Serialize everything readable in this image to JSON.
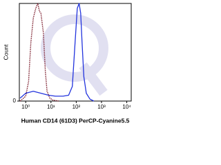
{
  "chart_data": {
    "type": "line",
    "log_x": true,
    "x_label": "Human CD14 (61D3) PerCP-Cyanine5.5",
    "y_label": "Count",
    "xlim": [
      0.56,
      15000
    ],
    "xticks": [
      {
        "value": 1,
        "label": "10⁰"
      },
      {
        "value": 10,
        "label": "10¹"
      },
      {
        "value": 100,
        "label": "10²"
      },
      {
        "value": 1000,
        "label": "10³"
      },
      {
        "value": 10000,
        "label": "10⁴"
      }
    ],
    "ylim": [
      0,
      100
    ],
    "yticks": [
      0
    ],
    "series": [
      {
        "color": "#7a1a2a",
        "dash": true,
        "x": [
          0.6,
          1,
          1.3,
          1.6,
          2,
          2.5,
          3,
          3.5,
          4,
          5,
          6,
          7,
          9,
          12,
          20
        ],
        "values": [
          0,
          5,
          20,
          60,
          85,
          95,
          100,
          92,
          90,
          70,
          30,
          10,
          3,
          1,
          0
        ]
      },
      {
        "color": "#2233dd",
        "dash": false,
        "x": [
          0.6,
          1,
          2,
          4,
          8,
          15,
          30,
          50,
          70,
          90,
          110,
          130,
          150,
          170,
          200,
          250,
          350,
          500
        ],
        "values": [
          3,
          8,
          10,
          8,
          6,
          5,
          5,
          6,
          15,
          60,
          95,
          100,
          90,
          60,
          25,
          8,
          2,
          0
        ]
      }
    ]
  }
}
